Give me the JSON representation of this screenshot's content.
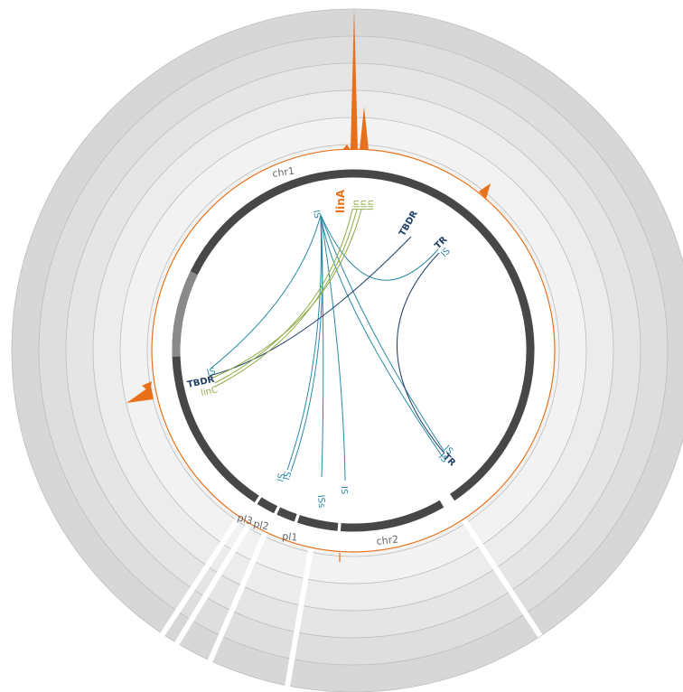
{
  "colors": {
    "ring_outer": "#d7d7d7",
    "ring_mid1": "#dedede",
    "ring_mid2": "#e5e5e5",
    "ring_mid3": "#ececec",
    "ring_inner": "#f2f2f2",
    "ring_line": "#bdbdbd",
    "track_orange": "#e8701a",
    "ideogram": "#474747",
    "ideogram_light": "#8a8a8a",
    "link_teal": "#2a8aa5",
    "link_navy": "#1f3f66",
    "link_olive": "#8faa45",
    "label_teal": "#2a8aa5",
    "label_navy": "#1f3f66",
    "label_olive": "#8faa45",
    "label_orange": "#e8701a",
    "chrom_label": "#666666"
  },
  "chromosomes": [
    {
      "id": "chr1",
      "label": "chr1"
    },
    {
      "id": "chr2",
      "label": "chr2"
    },
    {
      "id": "pl1",
      "label": "pl1"
    },
    {
      "id": "pl2",
      "label": "pl2"
    },
    {
      "id": "pl3",
      "label": "pl3"
    }
  ],
  "feature_labels": [
    {
      "id": "is-top",
      "text": "IS",
      "color": "teal"
    },
    {
      "id": "lina",
      "text": "linA",
      "color": "orange"
    },
    {
      "id": "linde-1",
      "text": "lin",
      "color": "olive"
    },
    {
      "id": "tbdr-top",
      "text": "TBDR",
      "color": "navy"
    },
    {
      "id": "tr-top",
      "text": "TR",
      "color": "navy"
    },
    {
      "id": "is-right",
      "text": "IS",
      "color": "teal"
    },
    {
      "id": "is-left",
      "text": "IS",
      "color": "teal"
    },
    {
      "id": "tbdr-left",
      "text": "TBDR",
      "color": "navy"
    },
    {
      "id": "linc",
      "text": "linC",
      "color": "olive"
    },
    {
      "id": "is-br1",
      "text": "IS",
      "color": "teal"
    },
    {
      "id": "tr-br",
      "text": "TR",
      "color": "navy"
    },
    {
      "id": "is-br2",
      "text": "IS",
      "color": "teal"
    },
    {
      "id": "is-b1",
      "text": "IS",
      "color": "teal"
    },
    {
      "id": "is-b2",
      "text": "IS",
      "color": "teal"
    },
    {
      "id": "is-b3",
      "text": "ISs",
      "color": "teal"
    },
    {
      "id": "is-b4",
      "text": "IS",
      "color": "teal"
    }
  ]
}
